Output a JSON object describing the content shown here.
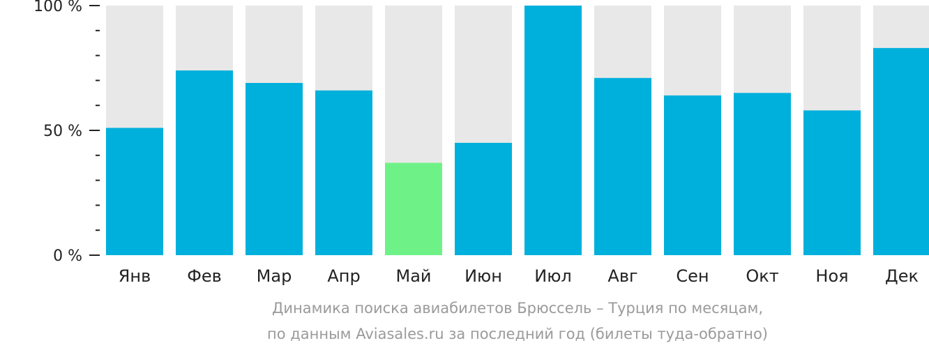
{
  "chart_data": {
    "type": "bar",
    "categories": [
      "Янв",
      "Фев",
      "Мар",
      "Апр",
      "Май",
      "Июн",
      "Июл",
      "Авг",
      "Сен",
      "Окт",
      "Ноя",
      "Дек"
    ],
    "values": [
      51,
      74,
      69,
      66,
      37,
      45,
      100,
      71,
      64,
      65,
      58,
      83
    ],
    "ylim": [
      0,
      100
    ],
    "yticks": [
      {
        "value": 100,
        "label": "100 %"
      },
      {
        "value": 50,
        "label": "50 %"
      },
      {
        "value": 0,
        "label": "0 %"
      }
    ],
    "minor_tick_step": 10,
    "highlight_category": "Май",
    "colors": {
      "bar": "#00b0dc",
      "highlight": "#6ef287",
      "background_bar": "#e8e8e8",
      "axis": "#222222"
    },
    "grid": false,
    "legend": "none"
  },
  "caption": {
    "line1": "Динамика поиска авиабилетов Брюссель – Турция по месяцам,",
    "line2": "по данным Aviasales.ru за последний год (билеты туда-обратно)"
  }
}
